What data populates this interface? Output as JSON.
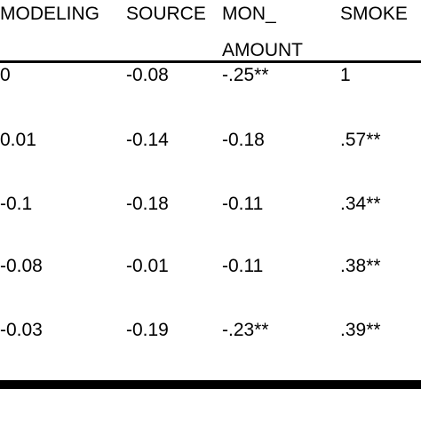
{
  "headers": {
    "col1": "MODELING",
    "col2": "SOURCE",
    "col3_line1": "MON_",
    "col3_line2": "AMOUNT",
    "col4": "SMOKE"
  },
  "rows": [
    [
      "0",
      "-0.08",
      "-.25**",
      "1"
    ],
    [
      "0.01",
      "-0.14",
      "-0.18",
      ".57**"
    ],
    [
      "-0.1",
      "-0.18",
      "-0.11",
      ".34**"
    ],
    [
      "-0.08",
      "-0.01",
      "-0.11",
      ".38**"
    ],
    [
      "-0.03",
      "-0.19",
      "-.23**",
      ".39**"
    ]
  ]
}
